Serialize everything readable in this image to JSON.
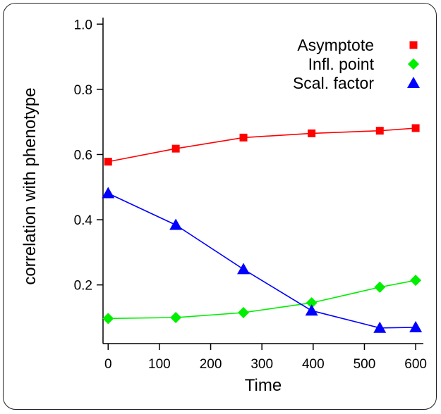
{
  "chart_data": {
    "type": "line",
    "xlabel": "Time",
    "ylabel": "correlation with phenotype",
    "xlim": [
      -10,
      615
    ],
    "ylim": [
      0.02,
      1.02
    ],
    "x_ticks": [
      0,
      100,
      200,
      300,
      400,
      500,
      600
    ],
    "y_ticks": [
      0.2,
      0.4,
      0.6,
      0.8,
      1.0
    ],
    "y_tick_labels": [
      "0.2",
      "0.4",
      "0.6",
      "0.8",
      "1.0"
    ],
    "x": [
      0,
      132,
      264,
      397,
      530,
      600
    ],
    "grid": false,
    "legend_position": "top-right",
    "series": [
      {
        "name": "Asymptote",
        "marker": "square",
        "color": "#ff0000",
        "values": [
          0.578,
          0.618,
          0.652,
          0.665,
          0.673,
          0.681
        ]
      },
      {
        "name": "Infl. point",
        "marker": "diamond",
        "color": "#00ee00",
        "values": [
          0.097,
          0.1,
          0.115,
          0.145,
          0.193,
          0.214
        ]
      },
      {
        "name": "Scal. factor",
        "marker": "triangle",
        "color": "#0000ff",
        "values": [
          0.481,
          0.384,
          0.248,
          0.121,
          0.068,
          0.07
        ]
      }
    ]
  }
}
